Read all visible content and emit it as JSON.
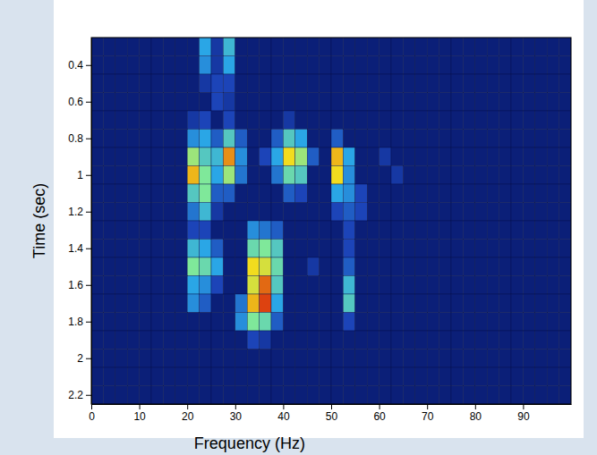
{
  "chart_data": {
    "type": "heatmap",
    "x_label": "Frequency (Hz)",
    "y_label": "Time (sec)",
    "xlim": [
      0,
      100
    ],
    "ylim": [
      0.25,
      2.25
    ],
    "xticks": [
      0,
      10,
      20,
      30,
      40,
      50,
      60,
      70,
      80,
      90
    ],
    "yticks": [
      0.4,
      0.6,
      0.8,
      1,
      1.2,
      1.4,
      1.6,
      1.8,
      2,
      2.2
    ],
    "color_range": [
      0,
      1
    ],
    "x_edges": [
      0,
      2.5,
      5,
      7.5,
      10,
      12.5,
      15,
      17.5,
      20,
      22.5,
      25,
      27.5,
      30,
      32.5,
      35,
      37.5,
      40,
      42.5,
      45,
      47.5,
      50,
      52.5,
      55,
      57.5,
      60,
      62.5,
      65,
      67.5,
      70,
      72.5,
      75,
      77.5,
      80,
      82.5,
      85,
      87.5,
      90,
      92.5,
      95,
      97.5,
      100
    ],
    "y_edges": [
      0.25,
      0.35,
      0.45,
      0.55,
      0.65,
      0.75,
      0.85,
      0.95,
      1.05,
      1.15,
      1.25,
      1.35,
      1.45,
      1.55,
      1.65,
      1.75,
      1.85,
      1.95,
      2.05,
      2.15,
      2.25
    ],
    "z": [
      [
        0,
        0,
        0,
        0,
        0,
        0,
        0,
        0,
        0,
        0.35,
        0.1,
        0.4,
        0,
        0,
        0,
        0,
        0,
        0,
        0,
        0,
        0,
        0,
        0,
        0,
        0,
        0,
        0,
        0,
        0,
        0,
        0,
        0,
        0,
        0,
        0,
        0,
        0,
        0,
        0,
        0
      ],
      [
        0,
        0,
        0,
        0,
        0,
        0,
        0,
        0,
        0,
        0.3,
        0.1,
        0.35,
        0,
        0,
        0,
        0,
        0,
        0,
        0,
        0,
        0,
        0,
        0,
        0,
        0,
        0,
        0,
        0,
        0,
        0,
        0,
        0,
        0,
        0,
        0,
        0,
        0,
        0,
        0,
        0
      ],
      [
        0,
        0,
        0,
        0,
        0,
        0,
        0,
        0,
        0,
        0.1,
        0.15,
        0.15,
        0,
        0,
        0,
        0,
        0,
        0,
        0,
        0,
        0,
        0,
        0,
        0,
        0,
        0,
        0,
        0,
        0,
        0,
        0,
        0,
        0,
        0,
        0,
        0,
        0,
        0,
        0,
        0
      ],
      [
        0,
        0,
        0,
        0,
        0,
        0,
        0,
        0,
        0,
        0,
        0.15,
        0.1,
        0,
        0,
        0,
        0,
        0,
        0,
        0,
        0,
        0,
        0,
        0,
        0,
        0,
        0,
        0,
        0,
        0,
        0,
        0,
        0,
        0,
        0,
        0,
        0,
        0,
        0,
        0,
        0
      ],
      [
        0,
        0,
        0,
        0,
        0,
        0,
        0,
        0,
        0.1,
        0.15,
        0,
        0.15,
        0,
        0,
        0,
        0,
        0.1,
        0,
        0,
        0,
        0,
        0,
        0,
        0,
        0,
        0,
        0,
        0,
        0,
        0,
        0,
        0,
        0,
        0,
        0,
        0,
        0,
        0,
        0,
        0
      ],
      [
        0,
        0,
        0,
        0,
        0,
        0,
        0,
        0,
        0.3,
        0.35,
        0.2,
        0.45,
        0.2,
        0,
        0,
        0.2,
        0.45,
        0.35,
        0,
        0,
        0.2,
        0,
        0,
        0,
        0,
        0,
        0,
        0,
        0,
        0,
        0,
        0,
        0,
        0,
        0,
        0,
        0,
        0,
        0,
        0
      ],
      [
        0,
        0,
        0,
        0,
        0,
        0,
        0,
        0,
        0.6,
        0.45,
        0.4,
        0.85,
        0.3,
        0,
        0.15,
        0.35,
        0.75,
        0.6,
        0.2,
        0,
        0.8,
        0.35,
        0,
        0,
        0.1,
        0,
        0,
        0,
        0,
        0,
        0,
        0,
        0,
        0,
        0,
        0,
        0,
        0,
        0,
        0
      ],
      [
        0,
        0,
        0,
        0,
        0,
        0,
        0,
        0,
        0.8,
        0.55,
        0.35,
        0.6,
        0.25,
        0,
        0,
        0.25,
        0.5,
        0.45,
        0,
        0,
        0.75,
        0.3,
        0,
        0,
        0,
        0.1,
        0,
        0,
        0,
        0,
        0,
        0,
        0,
        0,
        0,
        0,
        0,
        0,
        0,
        0
      ],
      [
        0,
        0,
        0,
        0,
        0,
        0,
        0,
        0,
        0.45,
        0.55,
        0.2,
        0.2,
        0,
        0,
        0,
        0,
        0.2,
        0.15,
        0,
        0,
        0.35,
        0.3,
        0.15,
        0,
        0,
        0,
        0,
        0,
        0,
        0,
        0,
        0,
        0,
        0,
        0,
        0,
        0,
        0,
        0,
        0
      ],
      [
        0,
        0,
        0,
        0,
        0,
        0,
        0,
        0,
        0.25,
        0.4,
        0.1,
        0,
        0,
        0,
        0,
        0,
        0,
        0,
        0,
        0,
        0.15,
        0.2,
        0.15,
        0,
        0,
        0,
        0,
        0,
        0,
        0,
        0,
        0,
        0,
        0,
        0,
        0,
        0,
        0,
        0,
        0
      ],
      [
        0,
        0,
        0,
        0,
        0,
        0,
        0,
        0,
        0.15,
        0.15,
        0,
        0,
        0,
        0.3,
        0.25,
        0.2,
        0,
        0,
        0,
        0,
        0,
        0.15,
        0,
        0,
        0,
        0,
        0,
        0,
        0,
        0,
        0,
        0,
        0,
        0,
        0,
        0,
        0,
        0,
        0,
        0
      ],
      [
        0,
        0,
        0,
        0,
        0,
        0,
        0,
        0,
        0.4,
        0.35,
        0.2,
        0,
        0,
        0.5,
        0.55,
        0.45,
        0,
        0,
        0,
        0,
        0,
        0.15,
        0,
        0,
        0,
        0,
        0,
        0,
        0,
        0,
        0,
        0,
        0,
        0,
        0,
        0,
        0,
        0,
        0,
        0
      ],
      [
        0,
        0,
        0,
        0,
        0,
        0,
        0,
        0,
        0.55,
        0.5,
        0.35,
        0,
        0,
        0.75,
        0.7,
        0.5,
        0,
        0,
        0.1,
        0,
        0,
        0.2,
        0,
        0,
        0,
        0,
        0,
        0,
        0,
        0,
        0,
        0,
        0,
        0,
        0,
        0,
        0,
        0,
        0,
        0
      ],
      [
        0,
        0,
        0,
        0,
        0,
        0,
        0,
        0,
        0.35,
        0.3,
        0.15,
        0,
        0,
        0.7,
        0.9,
        0.45,
        0,
        0,
        0,
        0,
        0,
        0.4,
        0,
        0,
        0,
        0,
        0,
        0,
        0,
        0,
        0,
        0,
        0,
        0,
        0,
        0,
        0,
        0,
        0,
        0
      ],
      [
        0,
        0,
        0,
        0,
        0,
        0,
        0,
        0,
        0.3,
        0.2,
        0,
        0,
        0.25,
        0.8,
        0.95,
        0.35,
        0,
        0,
        0,
        0,
        0,
        0.45,
        0,
        0,
        0,
        0,
        0,
        0,
        0,
        0,
        0,
        0,
        0,
        0,
        0,
        0,
        0,
        0,
        0,
        0
      ],
      [
        0,
        0,
        0,
        0,
        0,
        0,
        0,
        0,
        0,
        0,
        0,
        0,
        0.3,
        0.55,
        0.5,
        0.2,
        0,
        0,
        0,
        0,
        0,
        0.15,
        0,
        0,
        0,
        0,
        0,
        0,
        0,
        0,
        0,
        0,
        0,
        0,
        0,
        0,
        0,
        0,
        0,
        0
      ],
      [
        0,
        0,
        0,
        0,
        0,
        0,
        0,
        0,
        0,
        0,
        0,
        0,
        0,
        0.15,
        0.1,
        0,
        0,
        0,
        0,
        0,
        0,
        0,
        0,
        0,
        0,
        0,
        0,
        0,
        0,
        0,
        0,
        0,
        0,
        0,
        0,
        0,
        0,
        0,
        0,
        0
      ],
      [
        0,
        0,
        0,
        0,
        0,
        0,
        0,
        0,
        0,
        0,
        0,
        0,
        0,
        0,
        0,
        0,
        0,
        0,
        0,
        0,
        0,
        0,
        0,
        0,
        0,
        0,
        0,
        0,
        0,
        0,
        0,
        0,
        0,
        0,
        0,
        0,
        0,
        0,
        0,
        0
      ],
      [
        0,
        0,
        0,
        0,
        0,
        0,
        0,
        0,
        0,
        0,
        0,
        0,
        0,
        0,
        0,
        0,
        0,
        0,
        0,
        0,
        0,
        0,
        0,
        0,
        0,
        0,
        0,
        0,
        0,
        0,
        0,
        0,
        0,
        0,
        0,
        0,
        0,
        0,
        0,
        0
      ],
      [
        0,
        0,
        0,
        0,
        0,
        0,
        0,
        0,
        0,
        0,
        0,
        0,
        0,
        0,
        0,
        0,
        0,
        0,
        0,
        0,
        0,
        0,
        0,
        0,
        0,
        0,
        0,
        0,
        0,
        0,
        0,
        0,
        0,
        0,
        0,
        0,
        0,
        0,
        0,
        0
      ]
    ]
  }
}
